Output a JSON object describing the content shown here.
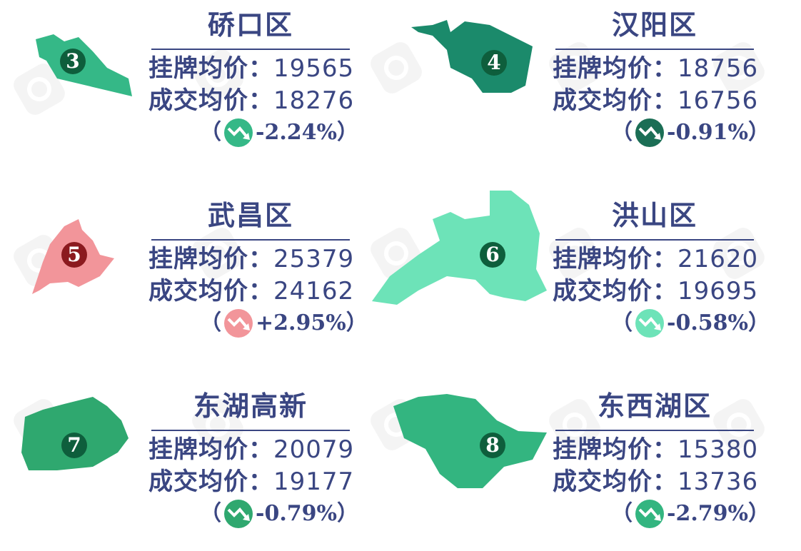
{
  "labels": {
    "listing": "挂牌均价：",
    "deal": "成交均价：",
    "open_paren": "（",
    "close_paren": "）"
  },
  "watermark": "贝壳",
  "districts": [
    {
      "number": "3",
      "name": "硚口区",
      "listing_price": "19565",
      "deal_price": "18276",
      "change": "-2.24%",
      "map_color": "#35b887",
      "badge_color": "#0e5e3c",
      "trend_color": "#35b887"
    },
    {
      "number": "4",
      "name": "汉阳区",
      "listing_price": "18756",
      "deal_price": "16756",
      "change": "-0.91%",
      "map_color": "#1b8a6b",
      "badge_color": "#0e5e3c",
      "trend_color": "#1b6e55"
    },
    {
      "number": "5",
      "name": "武昌区",
      "listing_price": "25379",
      "deal_price": "24162",
      "change": "+2.95%",
      "map_color": "#f2959a",
      "badge_color": "#8b1a1f",
      "trend_color": "#f2959a"
    },
    {
      "number": "6",
      "name": "洪山区",
      "listing_price": "21620",
      "deal_price": "19695",
      "change": "-0.58%",
      "map_color": "#6de3b8",
      "badge_color": "#0e5e3c",
      "trend_color": "#6de3b8"
    },
    {
      "number": "7",
      "name": "东湖高新",
      "listing_price": "20079",
      "deal_price": "19177",
      "change": "-0.79%",
      "map_color": "#2fa86f",
      "badge_color": "#0e5e3c",
      "trend_color": "#2fa86f"
    },
    {
      "number": "8",
      "name": "东西湖区",
      "listing_price": "15380",
      "deal_price": "13736",
      "change": "-2.79%",
      "map_color": "#33b580",
      "badge_color": "#0e5e3c",
      "trend_color": "#33b580"
    }
  ]
}
